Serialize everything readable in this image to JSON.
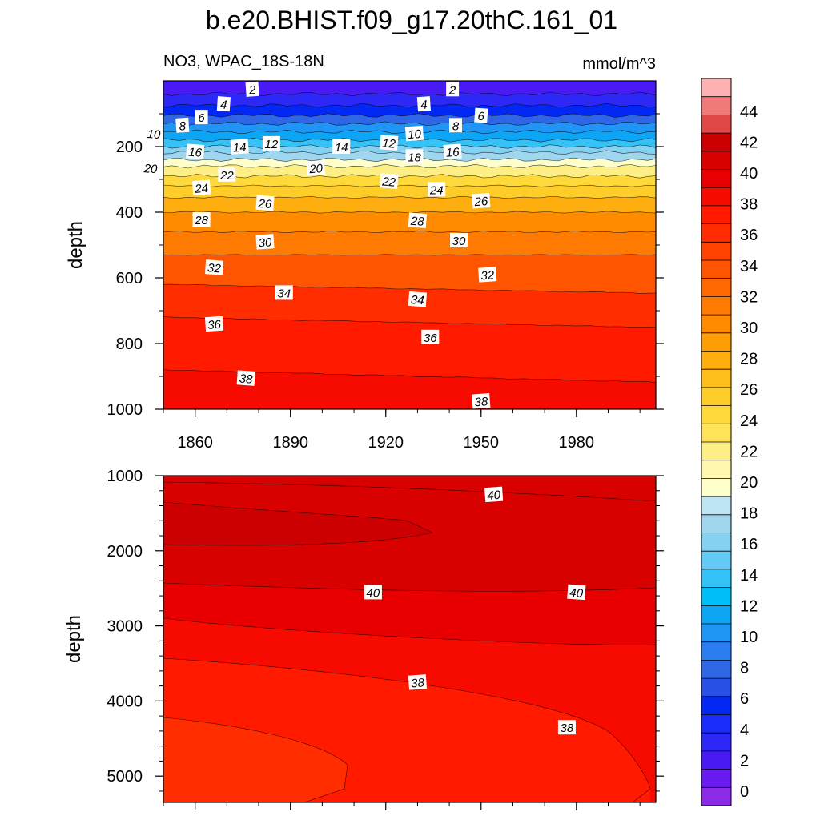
{
  "chart_data": [
    {
      "type": "contour",
      "title": "b.e20.BHIST.f09_g17.20thC.161_01",
      "subtitle_left": "NO3, WPAC_18S-18N",
      "subtitle_right": "mmol/m^3",
      "ylabel": "depth",
      "xlim": [
        1850,
        2005
      ],
      "ylim": [
        0,
        1000
      ],
      "y_inverted": true,
      "x_ticks": [
        "1860",
        "1890",
        "1920",
        "1950",
        "1980"
      ],
      "y_ticks": [
        "200",
        "400",
        "600",
        "800",
        "1000"
      ],
      "isoline_depths": [
        {
          "level": 2,
          "depth": 40
        },
        {
          "level": 4,
          "depth": 75
        },
        {
          "level": 6,
          "depth": 105
        },
        {
          "level": 8,
          "depth": 130
        },
        {
          "level": 10,
          "depth": 155
        },
        {
          "level": 12,
          "depth": 180
        },
        {
          "level": 14,
          "depth": 200
        },
        {
          "level": 16,
          "depth": 218
        },
        {
          "level": 18,
          "depth": 240
        },
        {
          "level": 20,
          "depth": 260
        },
        {
          "level": 22,
          "depth": 290
        },
        {
          "level": 24,
          "depth": 320
        },
        {
          "level": 26,
          "depth": 355
        },
        {
          "level": 28,
          "depth": 400
        },
        {
          "level": 30,
          "depth": 460
        },
        {
          "level": 32,
          "depth": 530
        },
        {
          "level": 34,
          "depth": 620
        },
        {
          "level": 36,
          "depth": 720
        },
        {
          "level": 38,
          "depth": 880
        }
      ],
      "contour_labels": [
        {
          "text": "2",
          "x": 1878,
          "depth": 25
        },
        {
          "text": "2",
          "x": 1941,
          "depth": 25
        },
        {
          "text": "4",
          "x": 1869,
          "depth": 70
        },
        {
          "text": "4",
          "x": 1932,
          "depth": 70
        },
        {
          "text": "6",
          "x": 1862,
          "depth": 110
        },
        {
          "text": "6",
          "x": 1950,
          "depth": 105
        },
        {
          "text": "8",
          "x": 1856,
          "depth": 135
        },
        {
          "text": "8",
          "x": 1942,
          "depth": 135
        },
        {
          "text": "10",
          "x": 1847,
          "depth": 160
        },
        {
          "text": "10",
          "x": 1929,
          "depth": 160
        },
        {
          "text": "12",
          "x": 1884,
          "depth": 190
        },
        {
          "text": "12",
          "x": 1921,
          "depth": 188
        },
        {
          "text": "14",
          "x": 1874,
          "depth": 200
        },
        {
          "text": "14",
          "x": 1906,
          "depth": 200
        },
        {
          "text": "16",
          "x": 1860,
          "depth": 215
        },
        {
          "text": "16",
          "x": 1941,
          "depth": 215
        },
        {
          "text": "18",
          "x": 1929,
          "depth": 230
        },
        {
          "text": "20",
          "x": 1846,
          "depth": 265
        },
        {
          "text": "20",
          "x": 1898,
          "depth": 265
        },
        {
          "text": "22",
          "x": 1870,
          "depth": 285
        },
        {
          "text": "22",
          "x": 1921,
          "depth": 305
        },
        {
          "text": "24",
          "x": 1862,
          "depth": 325
        },
        {
          "text": "24",
          "x": 1936,
          "depth": 330
        },
        {
          "text": "26",
          "x": 1882,
          "depth": 372
        },
        {
          "text": "26",
          "x": 1950,
          "depth": 365
        },
        {
          "text": "28",
          "x": 1862,
          "depth": 422
        },
        {
          "text": "28",
          "x": 1930,
          "depth": 425
        },
        {
          "text": "30",
          "x": 1882,
          "depth": 490
        },
        {
          "text": "30",
          "x": 1943,
          "depth": 485
        },
        {
          "text": "32",
          "x": 1866,
          "depth": 568
        },
        {
          "text": "32",
          "x": 1952,
          "depth": 590
        },
        {
          "text": "34",
          "x": 1888,
          "depth": 645
        },
        {
          "text": "34",
          "x": 1930,
          "depth": 665
        },
        {
          "text": "36",
          "x": 1866,
          "depth": 740
        },
        {
          "text": "36",
          "x": 1934,
          "depth": 780
        },
        {
          "text": "38",
          "x": 1876,
          "depth": 905
        },
        {
          "text": "38",
          "x": 1950,
          "depth": 975
        }
      ]
    },
    {
      "type": "contour",
      "ylabel": "depth",
      "xlim": [
        1850,
        2005
      ],
      "ylim": [
        1000,
        5350
      ],
      "y_inverted": true,
      "y_ticks": [
        "1000",
        "2000",
        "3000",
        "4000",
        "5000"
      ],
      "contour_labels": [
        {
          "text": "40",
          "x": 1954,
          "depth": 1250
        },
        {
          "text": "40",
          "x": 1916,
          "depth": 2550
        },
        {
          "text": "40",
          "x": 1980,
          "depth": 2550
        },
        {
          "text": "38",
          "x": 1930,
          "depth": 3750
        },
        {
          "text": "38",
          "x": 1977,
          "depth": 4350
        }
      ]
    }
  ],
  "colorbar": {
    "labels": [
      "0",
      "2",
      "4",
      "6",
      "8",
      "10",
      "12",
      "14",
      "16",
      "18",
      "20",
      "22",
      "24",
      "26",
      "28",
      "30",
      "32",
      "34",
      "36",
      "38",
      "40",
      "42",
      "44"
    ],
    "colors": [
      "#8b2be6",
      "#6a1cf0",
      "#4a1af5",
      "#2e28f6",
      "#1a2dfb",
      "#0428f4",
      "#2a50e6",
      "#2e66e6",
      "#2b7df0",
      "#1f95f5",
      "#0ca6f5",
      "#00bff8",
      "#35c3f7",
      "#62caf5",
      "#85d1f2",
      "#a0d7ef",
      "#bfe5f4",
      "#ffffcc",
      "#fff7b0",
      "#fdef85",
      "#ffe45a",
      "#ffd93a",
      "#ffcd2a",
      "#ffbe1b",
      "#ffae10",
      "#ff9d07",
      "#ff8c00",
      "#ff7a00",
      "#ff6800",
      "#ff5500",
      "#ff4200",
      "#ff2d00",
      "#ff1a00",
      "#f70a00",
      "#e80000",
      "#d90000",
      "#cc0000",
      "#e04848",
      "#f07a7a",
      "#ffb0b0"
    ]
  }
}
